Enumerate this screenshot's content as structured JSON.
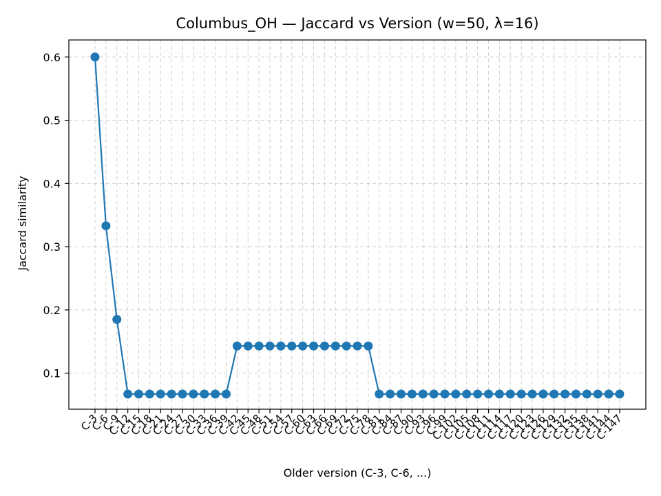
{
  "chart_data": {
    "type": "line",
    "title": "Columbus_OH — Jaccard vs Version (w=50, λ=16)",
    "xlabel": "Older version (C-3, C-6, ...)",
    "ylabel": "Jaccard similarity",
    "ylim": [
      0.043,
      0.627
    ],
    "yticks": [
      0.1,
      0.2,
      0.3,
      0.4,
      0.5,
      0.6
    ],
    "grid": true,
    "line_color": "#1f77b4",
    "categories": [
      "C-3",
      "C-6",
      "C-9",
      "C-12",
      "C-15",
      "C-18",
      "C-21",
      "C-24",
      "C-27",
      "C-30",
      "C-33",
      "C-36",
      "C-39",
      "C-42",
      "C-45",
      "C-48",
      "C-51",
      "C-54",
      "C-57",
      "C-60",
      "C-63",
      "C-66",
      "C-69",
      "C-72",
      "C-75",
      "C-78",
      "C-81",
      "C-84",
      "C-87",
      "C-90",
      "C-93",
      "C-96",
      "C-99",
      "C-102",
      "C-105",
      "C-108",
      "C-111",
      "C-114",
      "C-117",
      "C-120",
      "C-123",
      "C-126",
      "C-129",
      "C-132",
      "C-135",
      "C-138",
      "C-141",
      "C-144",
      "C-147"
    ],
    "values": [
      0.6,
      0.333,
      0.185,
      0.067,
      0.067,
      0.067,
      0.067,
      0.067,
      0.067,
      0.067,
      0.067,
      0.067,
      0.067,
      0.143,
      0.143,
      0.143,
      0.143,
      0.143,
      0.143,
      0.143,
      0.143,
      0.143,
      0.143,
      0.143,
      0.143,
      0.143,
      0.067,
      0.067,
      0.067,
      0.067,
      0.067,
      0.067,
      0.067,
      0.067,
      0.067,
      0.067,
      0.067,
      0.067,
      0.067,
      0.067,
      0.067,
      0.067,
      0.067,
      0.067,
      0.067,
      0.067,
      0.067,
      0.067,
      0.067
    ]
  }
}
